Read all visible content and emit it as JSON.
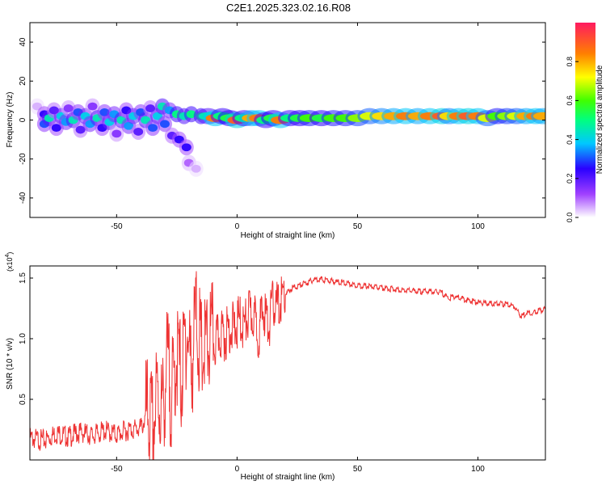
{
  "title": "C2E1.2025.323.02.16.R08",
  "chart_data": [
    {
      "type": "heatmap",
      "xlabel": "Height of straight line (km)",
      "ylabel": "Frequency (Hz)",
      "xlim": [
        -86,
        128
      ],
      "ylim": [
        -50,
        50
      ],
      "xticks": [
        -50,
        0,
        50,
        100
      ],
      "yticks": [
        40,
        20,
        0,
        -20,
        -40
      ],
      "xtick_labels": [
        "-50",
        "0",
        "50",
        "100"
      ],
      "ytick_labels": [
        "40",
        "20",
        "0",
        "-20",
        "-40"
      ],
      "colorbar": {
        "label": "Normalized spectral amplitude",
        "range": [
          0,
          1
        ],
        "ticks": [
          0.0,
          0.2,
          0.4,
          0.6,
          0.8
        ],
        "tick_labels": [
          "0.0",
          "0.2",
          "0.4",
          "0.6",
          "0.8"
        ]
      },
      "cells": [
        {
          "x": -83,
          "y": 7,
          "v": 0.05
        },
        {
          "x": -80,
          "y": 3,
          "v": 0.25
        },
        {
          "x": -80,
          "y": -2,
          "v": 0.3
        },
        {
          "x": -78,
          "y": 1,
          "v": 0.45
        },
        {
          "x": -76,
          "y": 5,
          "v": 0.2
        },
        {
          "x": -75,
          "y": -4,
          "v": 0.25
        },
        {
          "x": -73,
          "y": 2,
          "v": 0.4
        },
        {
          "x": -71,
          "y": -1,
          "v": 0.35
        },
        {
          "x": -70,
          "y": 6,
          "v": 0.15
        },
        {
          "x": -68,
          "y": 0,
          "v": 0.45
        },
        {
          "x": -66,
          "y": 4,
          "v": 0.3
        },
        {
          "x": -65,
          "y": -5,
          "v": 0.2
        },
        {
          "x": -63,
          "y": 2,
          "v": 0.4
        },
        {
          "x": -61,
          "y": -2,
          "v": 0.35
        },
        {
          "x": -60,
          "y": 7,
          "v": 0.15
        },
        {
          "x": -58,
          "y": 1,
          "v": 0.45
        },
        {
          "x": -56,
          "y": -4,
          "v": 0.25
        },
        {
          "x": -55,
          "y": 4,
          "v": 0.3
        },
        {
          "x": -53,
          "y": -1,
          "v": 0.4
        },
        {
          "x": -51,
          "y": 3,
          "v": 0.35
        },
        {
          "x": -50,
          "y": -7,
          "v": 0.15
        },
        {
          "x": -48,
          "y": 0,
          "v": 0.45
        },
        {
          "x": -46,
          "y": 5,
          "v": 0.25
        },
        {
          "x": -45,
          "y": -3,
          "v": 0.35
        },
        {
          "x": -43,
          "y": 2,
          "v": 0.4
        },
        {
          "x": -41,
          "y": -6,
          "v": 0.2
        },
        {
          "x": -40,
          "y": 4,
          "v": 0.3
        },
        {
          "x": -38,
          "y": 0,
          "v": 0.45
        },
        {
          "x": -36,
          "y": 6,
          "v": 0.2
        },
        {
          "x": -35,
          "y": -4,
          "v": 0.3
        },
        {
          "x": -33,
          "y": 2,
          "v": 0.4
        },
        {
          "x": -31,
          "y": 7,
          "v": 0.45
        },
        {
          "x": -30,
          "y": -2,
          "v": 0.3
        },
        {
          "x": -28,
          "y": 5,
          "v": 0.35
        },
        {
          "x": -27,
          "y": -8,
          "v": 0.2
        },
        {
          "x": -25,
          "y": 3,
          "v": 0.5
        },
        {
          "x": -24,
          "y": -10,
          "v": 0.25
        },
        {
          "x": -22,
          "y": 2,
          "v": 0.45
        },
        {
          "x": -21,
          "y": -14,
          "v": 0.25
        },
        {
          "x": -20,
          "y": -22,
          "v": 0.1
        },
        {
          "x": -19,
          "y": 3,
          "v": 0.5
        },
        {
          "x": -17,
          "y": -25,
          "v": 0.05
        },
        {
          "x": -15,
          "y": 2,
          "v": 0.5
        },
        {
          "x": -12,
          "y": 2,
          "v": 0.45
        },
        {
          "x": -9,
          "y": 1,
          "v": 0.85
        },
        {
          "x": -6,
          "y": 2,
          "v": 0.5
        },
        {
          "x": -3,
          "y": 1,
          "v": 0.55
        },
        {
          "x": 0,
          "y": 0,
          "v": 0.9
        },
        {
          "x": 3,
          "y": 1,
          "v": 0.5
        },
        {
          "x": 6,
          "y": 1,
          "v": 0.8
        },
        {
          "x": 9,
          "y": 1,
          "v": 0.85
        },
        {
          "x": 12,
          "y": 0,
          "v": 0.5
        },
        {
          "x": 15,
          "y": 1,
          "v": 0.55
        },
        {
          "x": 18,
          "y": 0,
          "v": 0.85
        },
        {
          "x": 22,
          "y": 1,
          "v": 0.5
        },
        {
          "x": 26,
          "y": 1,
          "v": 0.55
        },
        {
          "x": 30,
          "y": 1,
          "v": 0.6
        },
        {
          "x": 35,
          "y": 1,
          "v": 0.55
        },
        {
          "x": 40,
          "y": 1,
          "v": 0.6
        },
        {
          "x": 45,
          "y": 1,
          "v": 0.6
        },
        {
          "x": 50,
          "y": 1,
          "v": 0.65
        },
        {
          "x": 55,
          "y": 2,
          "v": 0.7
        },
        {
          "x": 60,
          "y": 2,
          "v": 0.75
        },
        {
          "x": 65,
          "y": 2,
          "v": 0.8
        },
        {
          "x": 70,
          "y": 2,
          "v": 0.85
        },
        {
          "x": 75,
          "y": 2,
          "v": 0.8
        },
        {
          "x": 80,
          "y": 2,
          "v": 0.85
        },
        {
          "x": 85,
          "y": 2,
          "v": 0.9
        },
        {
          "x": 88,
          "y": 2,
          "v": 0.75
        },
        {
          "x": 92,
          "y": 2,
          "v": 0.85
        },
        {
          "x": 96,
          "y": 2,
          "v": 0.9
        },
        {
          "x": 100,
          "y": 2,
          "v": 0.85
        },
        {
          "x": 104,
          "y": 1,
          "v": 0.7
        },
        {
          "x": 108,
          "y": 2,
          "v": 0.6
        },
        {
          "x": 112,
          "y": 2,
          "v": 0.65
        },
        {
          "x": 116,
          "y": 2,
          "v": 0.7
        },
        {
          "x": 120,
          "y": 2,
          "v": 0.8
        },
        {
          "x": 124,
          "y": 2,
          "v": 0.85
        },
        {
          "x": 127,
          "y": 2,
          "v": 0.8
        }
      ]
    },
    {
      "type": "line",
      "xlabel": "Height of straight line (km)",
      "ylabel": "SNR (10 * v/v)",
      "y_multiplier_label": "(x10",
      "y_multiplier_exp": "4",
      "xlim": [
        -86,
        128
      ],
      "ylim": [
        0,
        16000
      ],
      "xticks": [
        -50,
        0,
        50,
        100
      ],
      "yticks": [
        5000,
        10000,
        15000
      ],
      "xtick_labels": [
        "-50",
        "0",
        "50",
        "100"
      ],
      "ytick_labels": [
        "0.5",
        "1.0",
        "1.5"
      ],
      "line_color": "#ee3333",
      "series": [
        {
          "x": [
            -86,
            -80,
            -75,
            -70,
            -65,
            -60,
            -55,
            -50,
            -45,
            -40,
            -37,
            -35,
            -33,
            -31,
            -29,
            -27,
            -25,
            -23,
            -21,
            -19,
            -17,
            -15,
            -13,
            -11,
            -9,
            -7,
            -5,
            -3,
            -1,
            1,
            3,
            5,
            7,
            9,
            11,
            13,
            15,
            17,
            19,
            21,
            23,
            25,
            27,
            29,
            31,
            33,
            35,
            38,
            41,
            45,
            50,
            55,
            60,
            65,
            70,
            75,
            80,
            85,
            88,
            90,
            95,
            100,
            105,
            110,
            115,
            118,
            120,
            123,
            125,
            128
          ],
          "y": [
            1800,
            1600,
            2200,
            1900,
            2300,
            2000,
            2400,
            2100,
            2500,
            2600,
            3800,
            2500,
            5500,
            3800,
            8000,
            5000,
            9000,
            6500,
            11000,
            7500,
            12000,
            8500,
            9000,
            10000,
            9500,
            10500,
            10200,
            11000,
            10800,
            11500,
            11000,
            12000,
            11800,
            10500,
            12500,
            11000,
            13000,
            12500,
            13500,
            13800,
            14200,
            14300,
            14500,
            14600,
            14800,
            14900,
            14900,
            14800,
            14700,
            14600,
            14400,
            14300,
            14200,
            14100,
            14000,
            13900,
            13900,
            13800,
            13300,
            13500,
            13200,
            13000,
            12900,
            12900,
            12700,
            11800,
            12100,
            12100,
            12300,
            12400
          ]
        }
      ]
    }
  ]
}
